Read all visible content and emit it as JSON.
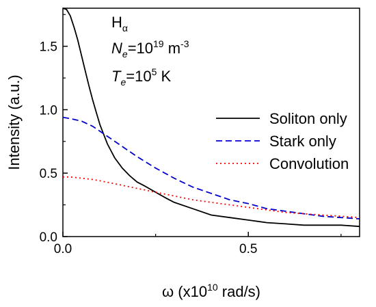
{
  "chart_data": {
    "type": "line",
    "xlabel": {
      "prefix": "ω (x10",
      "sup": "10",
      "suffix": " rad/s)"
    },
    "ylabel": "Intensity (a.u.)",
    "xlim": [
      0,
      0.8
    ],
    "ylim": [
      0,
      1.8
    ],
    "x_ticks": [
      0.0,
      0.5
    ],
    "x_tick_labels": [
      "0.0",
      "0.5"
    ],
    "y_ticks": [
      0.0,
      0.5,
      1.0,
      1.5
    ],
    "y_tick_labels": [
      "0.0",
      "0.5",
      "1.0",
      "1.5"
    ],
    "grid": false,
    "legend_position": "right",
    "annotations": {
      "line1": {
        "main": "H",
        "sub": "α"
      },
      "line2": {
        "main": "N",
        "sub": "e",
        "eq": "=10",
        "sup": "19",
        "unit": " m",
        "unit_sup": "-3"
      },
      "line3": {
        "main": "T",
        "sub": "e",
        "eq": "=10",
        "sup": "5",
        "unit": " K"
      }
    },
    "series": [
      {
        "name": "Soliton only",
        "color": "#000000",
        "dash": "solid",
        "x": [
          0.0,
          0.01,
          0.02,
          0.03,
          0.04,
          0.05,
          0.06,
          0.07,
          0.08,
          0.09,
          0.1,
          0.12,
          0.14,
          0.16,
          0.18,
          0.2,
          0.22,
          0.25,
          0.28,
          0.3,
          0.35,
          0.4,
          0.45,
          0.5,
          0.55,
          0.6,
          0.65,
          0.7,
          0.75,
          0.8
        ],
        "y": [
          1.8,
          1.79,
          1.74,
          1.65,
          1.55,
          1.43,
          1.31,
          1.19,
          1.08,
          0.98,
          0.88,
          0.73,
          0.62,
          0.54,
          0.48,
          0.43,
          0.4,
          0.35,
          0.3,
          0.27,
          0.22,
          0.17,
          0.15,
          0.13,
          0.11,
          0.1,
          0.09,
          0.09,
          0.09,
          0.08
        ]
      },
      {
        "name": "Stark only",
        "color": "#0000cc",
        "dash": "dashed",
        "x": [
          0.0,
          0.02,
          0.05,
          0.08,
          0.1,
          0.12,
          0.15,
          0.2,
          0.25,
          0.3,
          0.35,
          0.4,
          0.45,
          0.5,
          0.55,
          0.6,
          0.65,
          0.7,
          0.75,
          0.8
        ],
        "y": [
          0.94,
          0.93,
          0.91,
          0.87,
          0.83,
          0.79,
          0.73,
          0.63,
          0.54,
          0.46,
          0.39,
          0.34,
          0.29,
          0.26,
          0.22,
          0.2,
          0.18,
          0.16,
          0.15,
          0.14
        ]
      },
      {
        "name": "Convolution",
        "color": "#ff0000",
        "dash": "dotted",
        "x": [
          0.0,
          0.02,
          0.05,
          0.08,
          0.1,
          0.15,
          0.2,
          0.25,
          0.3,
          0.35,
          0.4,
          0.45,
          0.5,
          0.55,
          0.6,
          0.65,
          0.7,
          0.75,
          0.8
        ],
        "y": [
          0.47,
          0.47,
          0.46,
          0.45,
          0.44,
          0.41,
          0.38,
          0.35,
          0.32,
          0.29,
          0.27,
          0.25,
          0.23,
          0.21,
          0.19,
          0.18,
          0.17,
          0.16,
          0.15
        ]
      }
    ]
  }
}
